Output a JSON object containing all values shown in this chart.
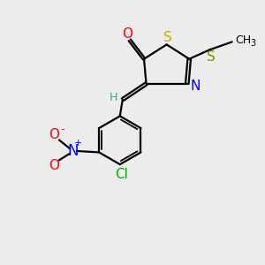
{
  "background_color": "#ececec",
  "atom_colors": {
    "C": "#000000",
    "H": "#4a9a9a",
    "N": "#0000ff",
    "O": "#ff0000",
    "S_ring": "#ccaa00",
    "S_thio": "#888800",
    "Cl": "#00aa00",
    "NO2_N": "#0000ff",
    "NO2_O": "#ff0000"
  },
  "bond_color": "#000000",
  "figsize": [
    3.0,
    3.0
  ],
  "dpi": 100,
  "xlim": [
    0,
    10
  ],
  "ylim": [
    0,
    10
  ]
}
